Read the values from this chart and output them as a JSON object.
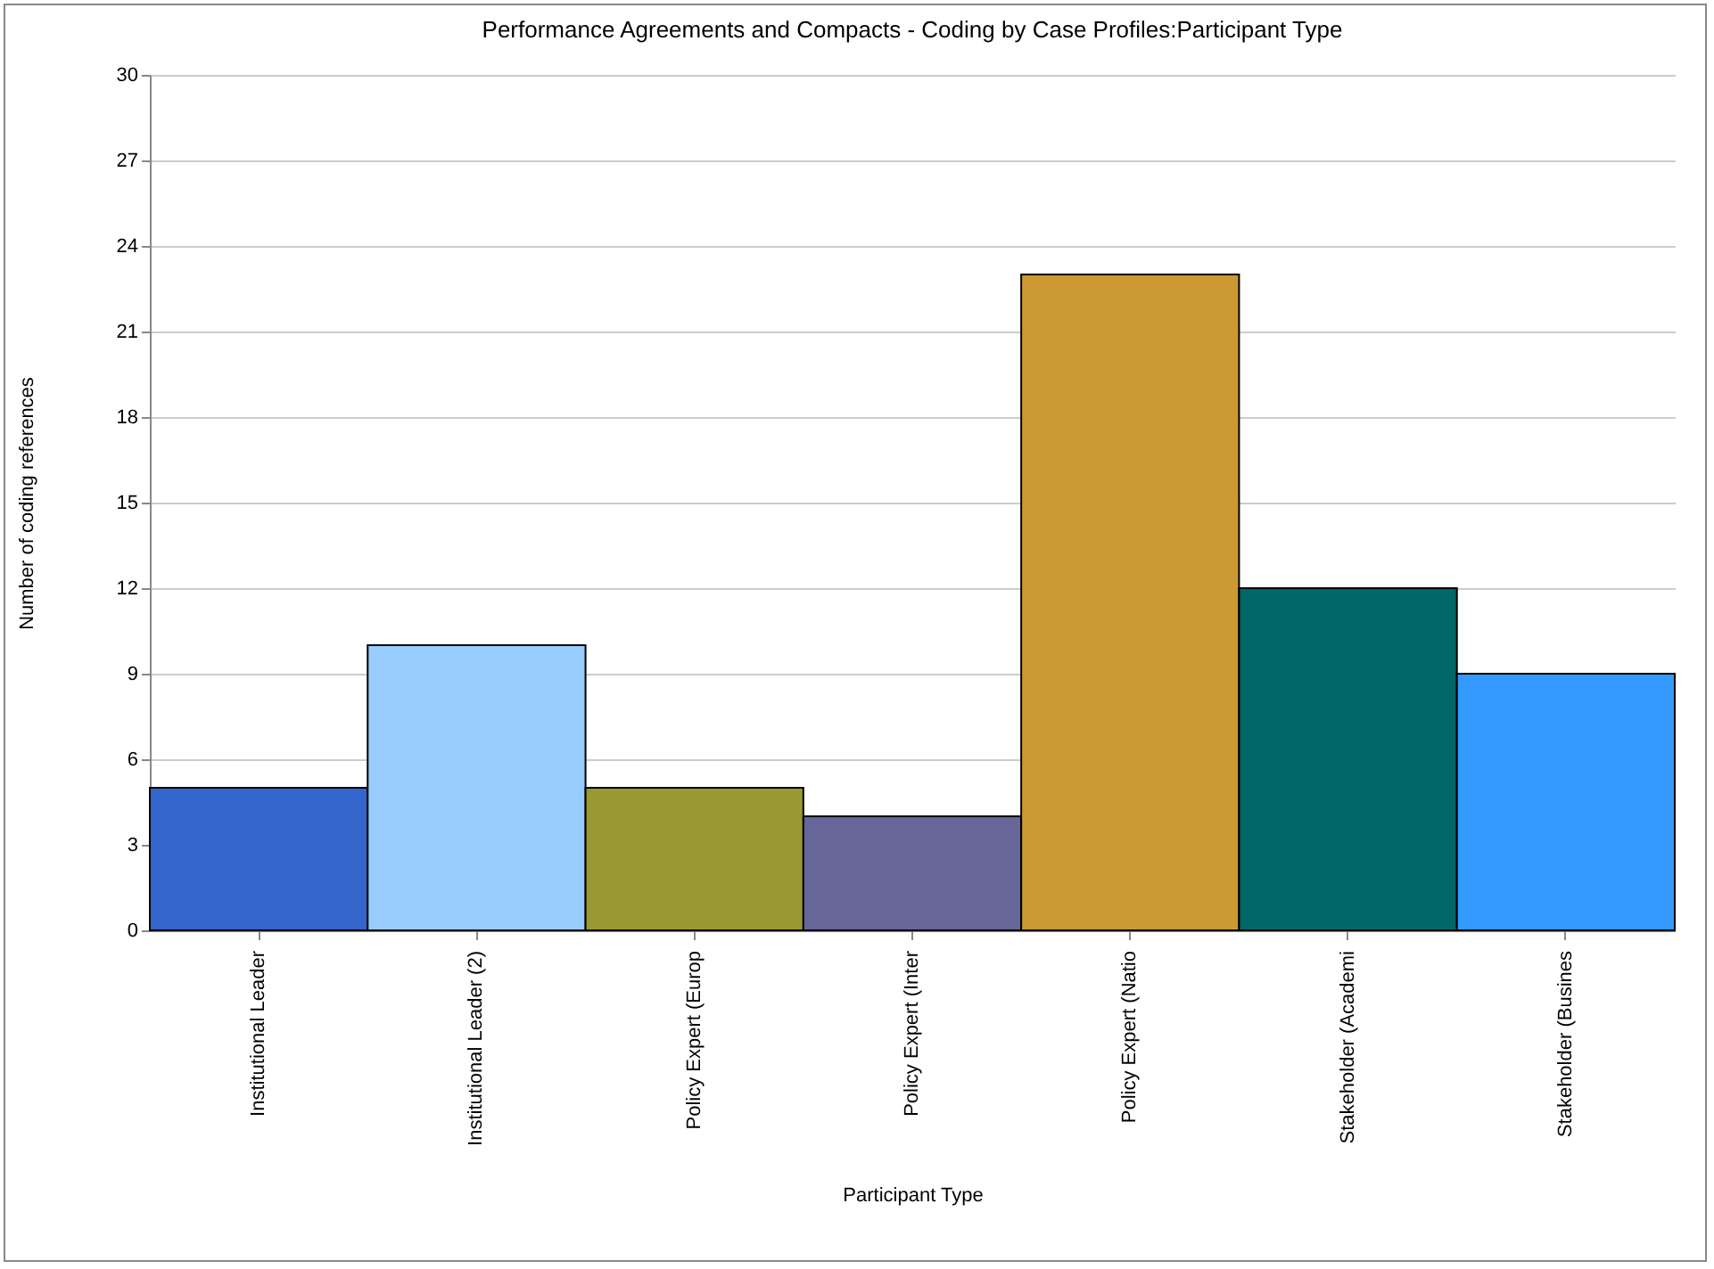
{
  "chart_data": {
    "type": "bar",
    "title": "Performance Agreements and Compacts - Coding by Case Profiles:Participant Type",
    "xlabel": "Participant Type",
    "ylabel": "Number of coding references",
    "categories": [
      "Institutional Leader",
      "Institutional Leader (2)",
      "Policy Expert (Europ",
      "Policy Expert (Inter",
      "Policy Expert (Natio",
      "Stakeholder (Academi",
      "Stakeholder (Busines"
    ],
    "values": [
      5,
      10,
      5,
      4,
      23,
      12,
      9
    ],
    "colors": [
      "#3366cc",
      "#99ccff",
      "#999933",
      "#666699",
      "#cc9933",
      "#006666",
      "#3399ff"
    ],
    "ylim": [
      0,
      30
    ],
    "yticks": [
      0,
      3,
      6,
      9,
      12,
      15,
      18,
      21,
      24,
      27,
      30
    ],
    "grid": "y"
  }
}
